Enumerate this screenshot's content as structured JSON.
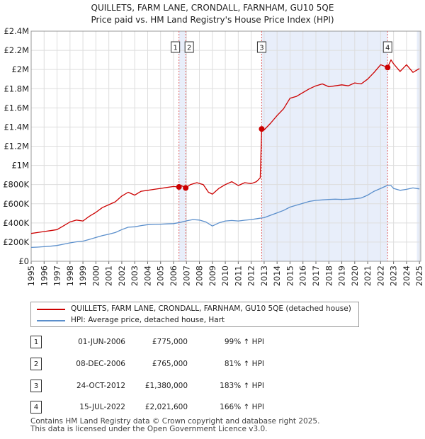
{
  "chart_data": {
    "type": "line",
    "title": "QUILLETS, FARM LANE, CRONDALL, FARNHAM, GU10 5QE",
    "subtitle": "Price paid vs. HM Land Registry's House Price Index (HPI)",
    "xlim": [
      1995.0,
      2025.1
    ],
    "ylim": [
      0,
      2400000
    ],
    "x_tick_labels": [
      "1995",
      "1996",
      "1997",
      "1998",
      "1999",
      "2000",
      "2001",
      "2002",
      "2003",
      "2004",
      "2005",
      "2006",
      "2007",
      "2008",
      "2009",
      "2010",
      "2011",
      "2012",
      "2013",
      "2014",
      "2015",
      "2016",
      "2017",
      "2018",
      "2019",
      "2020",
      "2021",
      "2022",
      "2023",
      "2024",
      "2025"
    ],
    "y_ticks": [
      0,
      200000,
      400000,
      600000,
      800000,
      1000000,
      1200000,
      1400000,
      1600000,
      1800000,
      2000000,
      2200000,
      2400000
    ],
    "y_tick_labels": [
      "£0",
      "£200K",
      "£400K",
      "£600K",
      "£800K",
      "£1M",
      "£1.2M",
      "£1.4M",
      "£1.6M",
      "£1.8M",
      "£2M",
      "£2.2M",
      "£2.4M"
    ],
    "grid": true,
    "colors": {
      "property": "#cc0000",
      "hpi": "#5b8fcc",
      "shade": "#e8eefa",
      "vline": "#e06060"
    },
    "shaded_ranges": [
      [
        2006.42,
        2006.94
      ],
      [
        2012.81,
        2022.54
      ],
      [
        2024.8,
        2025.1
      ]
    ],
    "series": [
      {
        "name": "QUILLETS, FARM LANE, CRONDALL, FARNHAM, GU10 5QE (detached house)",
        "x": [
          1995.0,
          1995.5,
          1996.0,
          1996.5,
          1997.0,
          1997.5,
          1998.0,
          1998.5,
          1999.0,
          1999.5,
          2000.0,
          2000.5,
          2001.0,
          2001.5,
          2002.0,
          2002.5,
          2003.0,
          2003.5,
          2004.0,
          2004.5,
          2005.0,
          2005.5,
          2006.0,
          2006.42,
          2006.6,
          2006.94,
          2007.3,
          2007.8,
          2008.3,
          2008.7,
          2009.0,
          2009.5,
          2010.0,
          2010.5,
          2011.0,
          2011.5,
          2012.0,
          2012.4,
          2012.7,
          2012.81,
          2013.0,
          2013.5,
          2014.0,
          2014.5,
          2015.0,
          2015.5,
          2016.0,
          2016.5,
          2017.0,
          2017.5,
          2018.0,
          2018.5,
          2019.0,
          2019.5,
          2020.0,
          2020.5,
          2021.0,
          2021.5,
          2022.0,
          2022.54,
          2022.8,
          2023.0,
          2023.5,
          2024.0,
          2024.5,
          2025.0
        ],
        "values": [
          290000,
          300000,
          310000,
          320000,
          330000,
          370000,
          410000,
          430000,
          420000,
          470000,
          510000,
          560000,
          590000,
          620000,
          680000,
          720000,
          690000,
          730000,
          740000,
          750000,
          760000,
          770000,
          780000,
          775000,
          790000,
          765000,
          800000,
          820000,
          800000,
          720000,
          700000,
          760000,
          800000,
          830000,
          790000,
          820000,
          810000,
          830000,
          870000,
          1380000,
          1370000,
          1440000,
          1520000,
          1590000,
          1700000,
          1720000,
          1760000,
          1800000,
          1830000,
          1850000,
          1820000,
          1830000,
          1840000,
          1830000,
          1860000,
          1850000,
          1900000,
          1970000,
          2050000,
          2021600,
          2100000,
          2060000,
          1980000,
          2050000,
          1970000,
          2010000
        ]
      },
      {
        "name": "HPI: Average price, detached house, Hart",
        "x": [
          1995.0,
          1995.5,
          1996.0,
          1996.5,
          1997.0,
          1997.5,
          1998.0,
          1998.5,
          1999.0,
          1999.5,
          2000.0,
          2000.5,
          2001.0,
          2001.5,
          2002.0,
          2002.5,
          2003.0,
          2003.5,
          2004.0,
          2004.5,
          2005.0,
          2005.5,
          2006.0,
          2006.5,
          2007.0,
          2007.5,
          2008.0,
          2008.5,
          2009.0,
          2009.5,
          2010.0,
          2010.5,
          2011.0,
          2011.5,
          2012.0,
          2012.5,
          2013.0,
          2013.5,
          2014.0,
          2014.5,
          2015.0,
          2015.5,
          2016.0,
          2016.5,
          2017.0,
          2017.5,
          2018.0,
          2018.5,
          2019.0,
          2019.5,
          2020.0,
          2020.5,
          2021.0,
          2021.5,
          2022.0,
          2022.5,
          2022.8,
          2023.0,
          2023.5,
          2024.0,
          2024.5,
          2025.0
        ],
        "values": [
          145000,
          148000,
          152000,
          157000,
          165000,
          178000,
          192000,
          203000,
          210000,
          228000,
          248000,
          268000,
          282000,
          300000,
          330000,
          355000,
          360000,
          372000,
          382000,
          385000,
          387000,
          390000,
          393000,
          405000,
          422000,
          435000,
          430000,
          410000,
          368000,
          400000,
          420000,
          425000,
          420000,
          428000,
          435000,
          445000,
          455000,
          480000,
          505000,
          530000,
          565000,
          585000,
          605000,
          625000,
          635000,
          640000,
          645000,
          648000,
          645000,
          648000,
          652000,
          660000,
          690000,
          730000,
          760000,
          790000,
          790000,
          760000,
          740000,
          750000,
          765000,
          755000
        ]
      }
    ],
    "transactions": [
      {
        "marker": "1",
        "x": 2006.42,
        "value": 775000,
        "date": "01-JUN-2006",
        "price": "£775,000",
        "hpi_change": "99% ↑ HPI"
      },
      {
        "marker": "2",
        "x": 2006.94,
        "value": 765000,
        "date": "08-DEC-2006",
        "price": "£765,000",
        "hpi_change": "81% ↑ HPI"
      },
      {
        "marker": "3",
        "x": 2012.81,
        "value": 1380000,
        "date": "24-OCT-2012",
        "price": "£1,380,000",
        "hpi_change": "183% ↑ HPI"
      },
      {
        "marker": "4",
        "x": 2022.54,
        "value": 2021600,
        "date": "15-JUL-2022",
        "price": "£2,021,600",
        "hpi_change": "166% ↑ HPI"
      }
    ]
  },
  "legend": {
    "property_label": "QUILLETS, FARM LANE, CRONDALL, FARNHAM, GU10 5QE (detached house)",
    "hpi_label": "HPI: Average price, detached house, Hart"
  },
  "footer": {
    "line1": "Contains HM Land Registry data © Crown copyright and database right 2025.",
    "line2": "This data is licensed under the Open Government Licence v3.0."
  }
}
